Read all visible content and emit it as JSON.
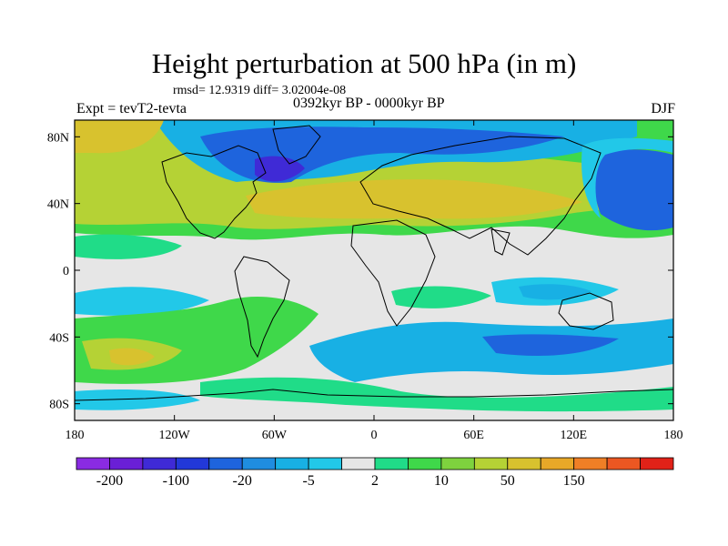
{
  "title": "Height perturbation at 500 hPa (in m)",
  "stats": "rmsd= 12.9319  diff= 3.02004e-08",
  "left_label": "Expt = tevT2-tevta",
  "center_label": "0392kyr BP - 0000kyr BP",
  "right_label": "DJF",
  "map": {
    "projection": "cylindrical-equidistant",
    "lon_range": [
      -180,
      180
    ],
    "lat_range": [
      -90,
      90
    ],
    "lat_ticks": [
      {
        "value": 80,
        "label": "80N"
      },
      {
        "value": 40,
        "label": "40N"
      },
      {
        "value": 0,
        "label": "0"
      },
      {
        "value": -40,
        "label": "40S"
      },
      {
        "value": -80,
        "label": "80S"
      }
    ],
    "lon_ticks": [
      {
        "value": -180,
        "label": "180"
      },
      {
        "value": -120,
        "label": "120W"
      },
      {
        "value": -60,
        "label": "60W"
      },
      {
        "value": 0,
        "label": "0"
      },
      {
        "value": 60,
        "label": "60E"
      },
      {
        "value": 120,
        "label": "120E"
      },
      {
        "value": 180,
        "label": "180"
      }
    ]
  },
  "colorbar": {
    "colors": [
      "#8a2be2",
      "#6a1fd6",
      "#3f2ad6",
      "#2238d9",
      "#1e64dd",
      "#1f8de0",
      "#18b0e4",
      "#22c8e8",
      "#e6e6e6",
      "#20dc88",
      "#3fd84a",
      "#7ed23e",
      "#b5d235",
      "#d8c22e",
      "#e8a828",
      "#ef7f26",
      "#ec5722",
      "#e12218"
    ],
    "labels": [
      {
        "after_index": 0,
        "text": "-200"
      },
      {
        "after_index": 2,
        "text": "-100"
      },
      {
        "after_index": 4,
        "text": "-20"
      },
      {
        "after_index": 6,
        "text": "-5"
      },
      {
        "after_index": 8,
        "text": "2"
      },
      {
        "after_index": 10,
        "text": "10"
      },
      {
        "after_index": 12,
        "text": "50"
      },
      {
        "after_index": 14,
        "text": "150"
      }
    ]
  }
}
